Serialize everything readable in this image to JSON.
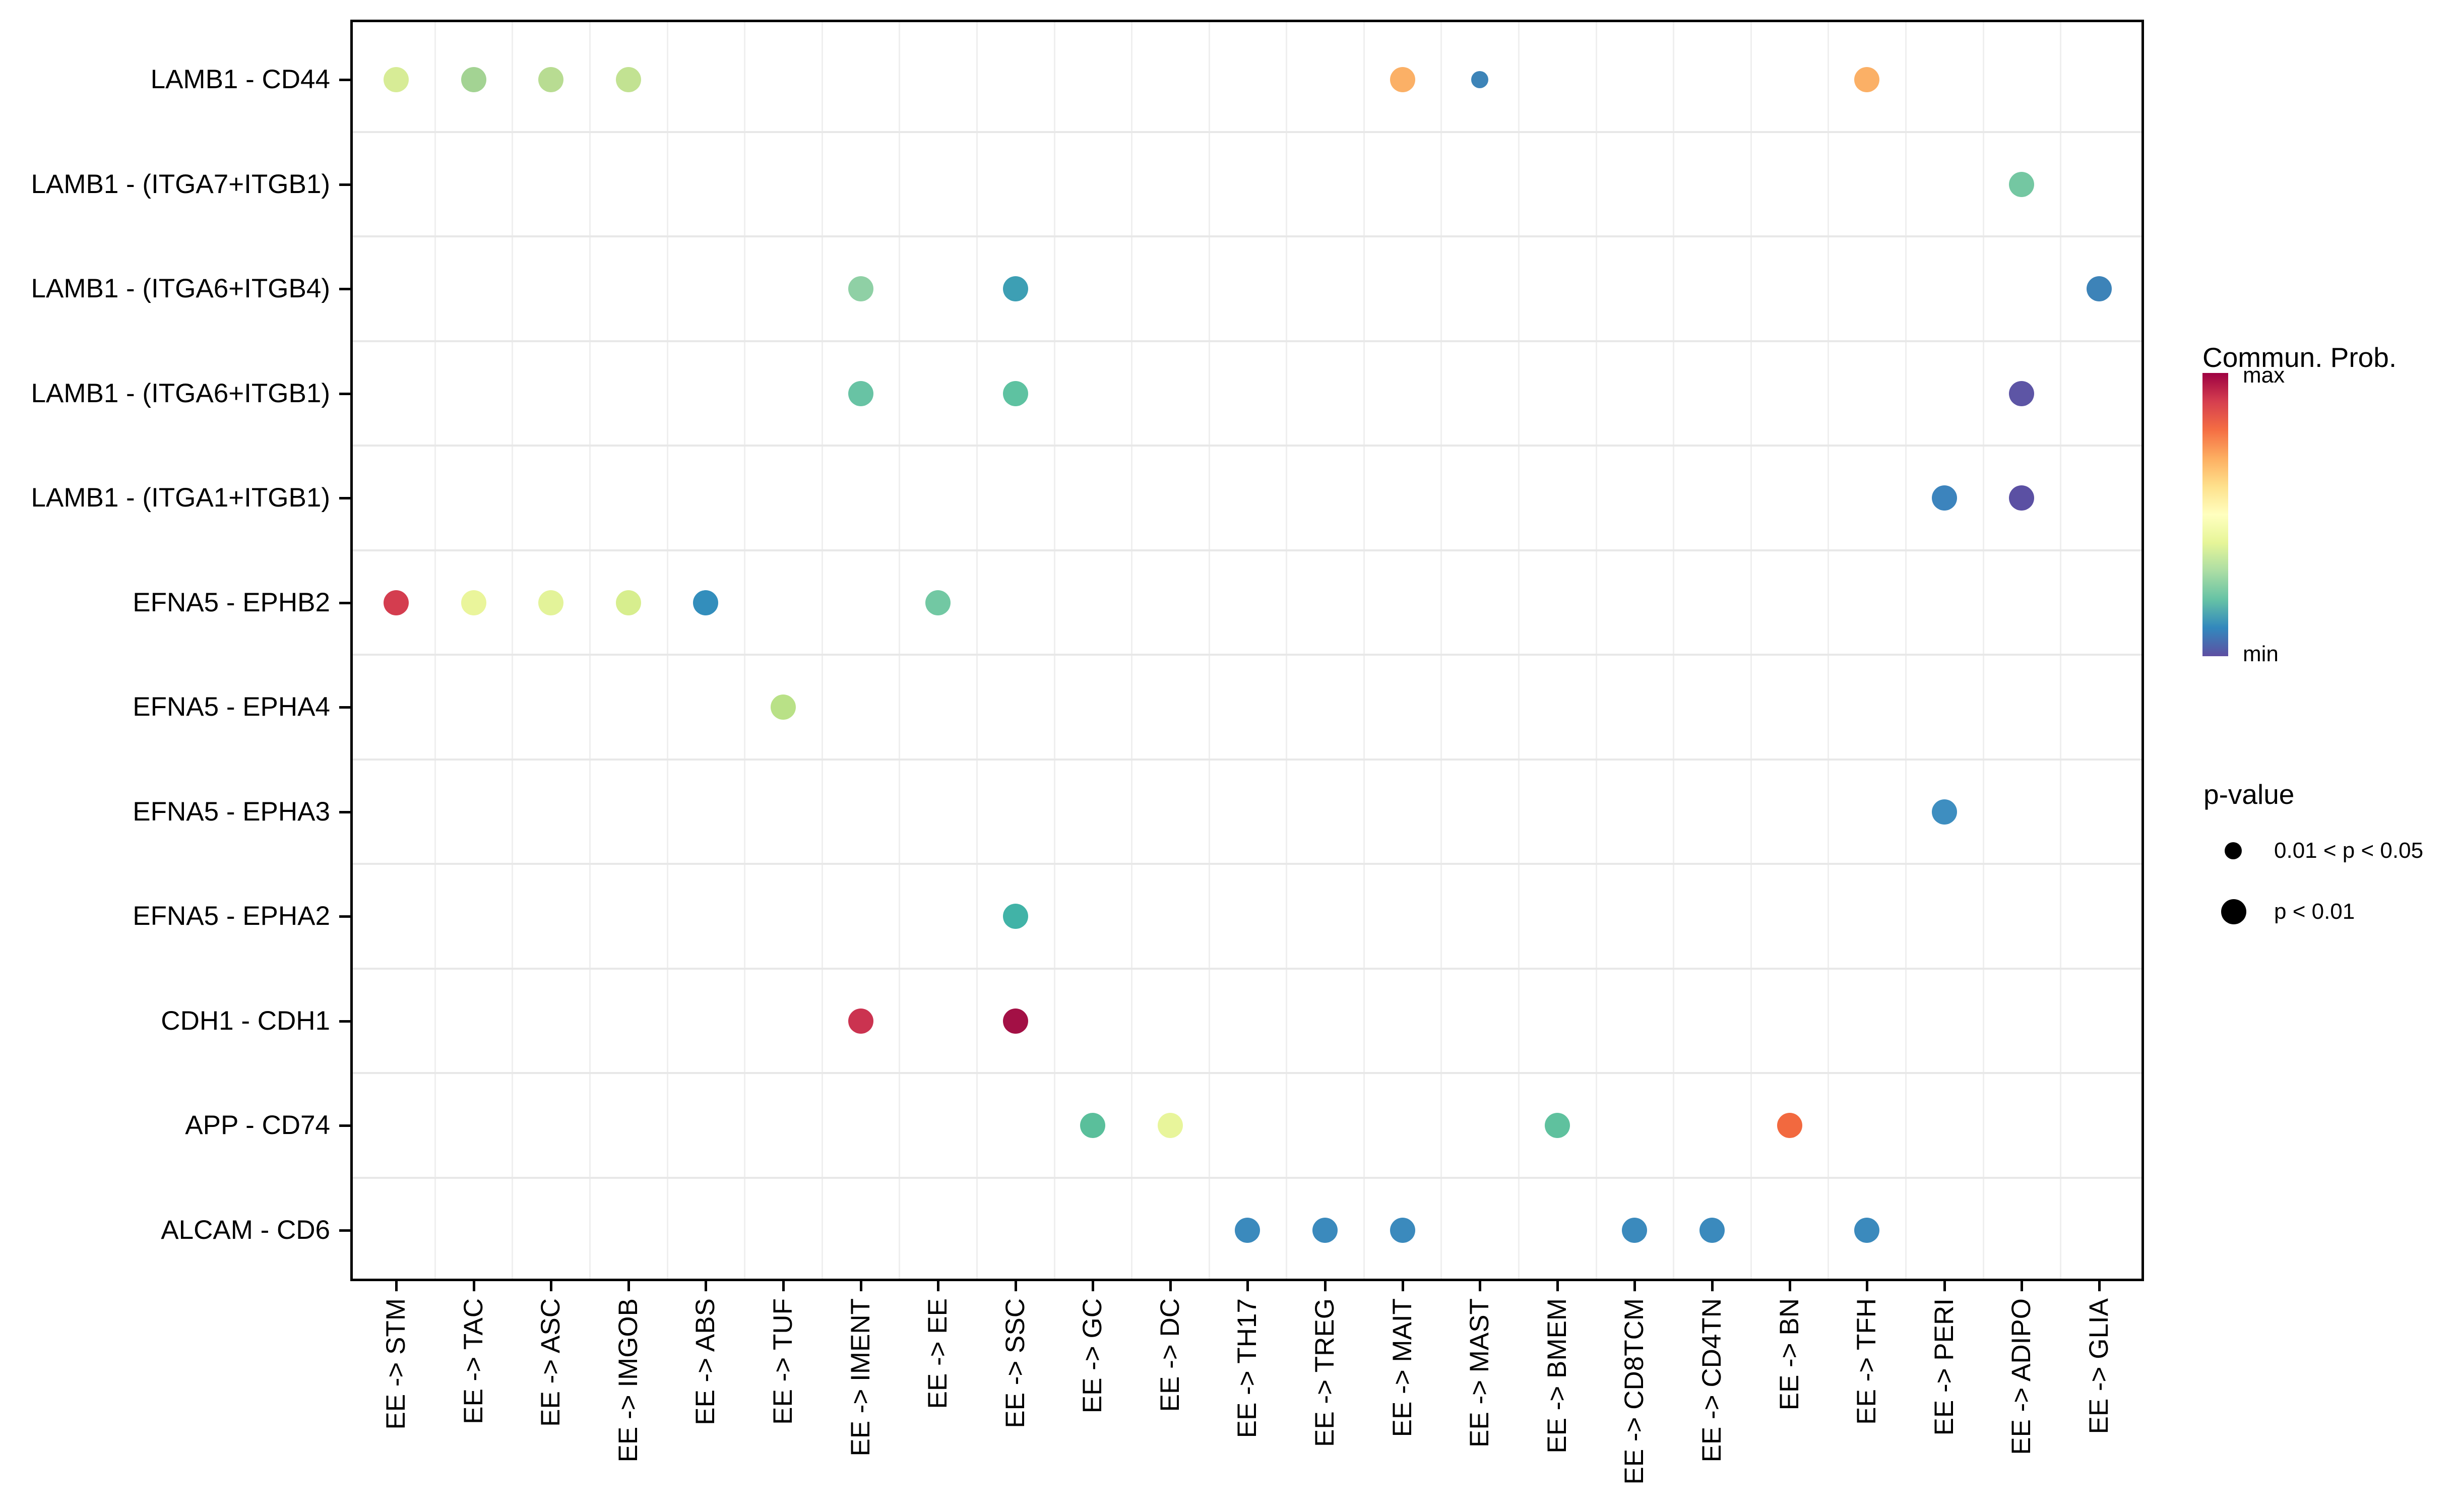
{
  "chart_data": {
    "type": "scatter",
    "subtype": "bubble-dot-plot",
    "title": "",
    "xlabel": "",
    "ylabel": "",
    "grid": "minor gridlines between category rows/columns",
    "legend_position": "right",
    "x_categories": [
      "EE -> STM",
      "EE -> TAC",
      "EE -> ASC",
      "EE -> IMGOB",
      "EE -> ABS",
      "EE -> TUF",
      "EE -> IMENT",
      "EE -> EE",
      "EE -> SSC",
      "EE -> GC",
      "EE -> DC",
      "EE -> TH17",
      "EE -> TREG",
      "EE -> MAIT",
      "EE -> MAST",
      "EE -> BMEM",
      "EE -> CD8TCM",
      "EE -> CD4TN",
      "EE -> BN",
      "EE -> TFH",
      "EE -> PERI",
      "EE -> ADIPO",
      "EE -> GLIA"
    ],
    "y_categories": [
      "LAMB1 - CD44",
      "LAMB1 - (ITGA7+ITGB1)",
      "LAMB1 - (ITGA6+ITGB4)",
      "LAMB1 - (ITGA6+ITGB1)",
      "LAMB1 - (ITGA1+ITGB1)",
      "EFNA5 - EPHB2",
      "EFNA5 - EPHA4",
      "EFNA5 - EPHA3",
      "EFNA5 - EPHA2",
      "CDH1 - CDH1",
      "APP - CD74",
      "ALCAM - CD6"
    ],
    "color_scale": {
      "meaning": "Commun. Prob.",
      "palette": "Spectral reversed",
      "max_color": "#9E0142",
      "min_color": "#5E4FA2"
    },
    "size_scale": {
      "large": "p < 0.01",
      "small": "0.01 < p < 0.05"
    },
    "points": [
      {
        "x": "EE -> STM",
        "y": "LAMB1 - CD44",
        "color": "#d7ec96",
        "size": "large"
      },
      {
        "x": "EE -> TAC",
        "y": "LAMB1 - CD44",
        "color": "#a3d393",
        "size": "large"
      },
      {
        "x": "EE -> ASC",
        "y": "LAMB1 - CD44",
        "color": "#b8dc92",
        "size": "large"
      },
      {
        "x": "EE -> IMGOB",
        "y": "LAMB1 - CD44",
        "color": "#c2e292",
        "size": "large"
      },
      {
        "x": "EE -> MAIT",
        "y": "LAMB1 - CD44",
        "color": "#fbb066",
        "size": "large"
      },
      {
        "x": "EE -> MAST",
        "y": "LAMB1 - CD44",
        "color": "#3d84b8",
        "size": "small"
      },
      {
        "x": "EE -> TFH",
        "y": "LAMB1 - CD44",
        "color": "#fbb066",
        "size": "large"
      },
      {
        "x": "EE -> ADIPO",
        "y": "LAMB1 - (ITGA7+ITGB1)",
        "color": "#74c7a2",
        "size": "large"
      },
      {
        "x": "EE -> IMENT",
        "y": "LAMB1 - (ITGA6+ITGB4)",
        "color": "#8fd0a5",
        "size": "large"
      },
      {
        "x": "EE -> SSC",
        "y": "LAMB1 - (ITGA6+ITGB4)",
        "color": "#3d9fb4",
        "size": "large"
      },
      {
        "x": "EE -> GLIA",
        "y": "LAMB1 - (ITGA6+ITGB4)",
        "color": "#3d83b8",
        "size": "large"
      },
      {
        "x": "EE -> IMENT",
        "y": "LAMB1 - (ITGA6+ITGB1)",
        "color": "#68c3a4",
        "size": "large"
      },
      {
        "x": "EE -> SSC",
        "y": "LAMB1 - (ITGA6+ITGB1)",
        "color": "#5ec2a1",
        "size": "large"
      },
      {
        "x": "EE -> ADIPO",
        "y": "LAMB1 - (ITGA6+ITGB1)",
        "color": "#5d55a5",
        "size": "large"
      },
      {
        "x": "EE -> PERI",
        "y": "LAMB1 - (ITGA1+ITGB1)",
        "color": "#3c84bd",
        "size": "large"
      },
      {
        "x": "EE -> ADIPO",
        "y": "LAMB1 - (ITGA1+ITGB1)",
        "color": "#5b50a3",
        "size": "large"
      },
      {
        "x": "EE -> STM",
        "y": "EFNA5 - EPHB2",
        "color": "#d43d4f",
        "size": "large"
      },
      {
        "x": "EE -> TAC",
        "y": "EFNA5 - EPHB2",
        "color": "#eaf59b",
        "size": "large"
      },
      {
        "x": "EE -> ASC",
        "y": "EFNA5 - EPHB2",
        "color": "#e3f399",
        "size": "large"
      },
      {
        "x": "EE -> IMGOB",
        "y": "EFNA5 - EPHB2",
        "color": "#d7ee8e",
        "size": "large"
      },
      {
        "x": "EE -> ABS",
        "y": "EFNA5 - EPHB2",
        "color": "#338ebc",
        "size": "large"
      },
      {
        "x": "EE -> EE",
        "y": "EFNA5 - EPHB2",
        "color": "#72c8a3",
        "size": "large"
      },
      {
        "x": "EE -> TUF",
        "y": "EFNA5 - EPHA4",
        "color": "#b9e187",
        "size": "large"
      },
      {
        "x": "EE -> PERI",
        "y": "EFNA5 - EPHA3",
        "color": "#3e8ec0",
        "size": "large"
      },
      {
        "x": "EE -> SSC",
        "y": "EFNA5 - EPHA2",
        "color": "#41b3a7",
        "size": "large"
      },
      {
        "x": "EE -> IMENT",
        "y": "CDH1 - CDH1",
        "color": "#cb3350",
        "size": "large"
      },
      {
        "x": "EE -> SSC",
        "y": "CDH1 - CDH1",
        "color": "#a31045",
        "size": "large"
      },
      {
        "x": "EE -> GC",
        "y": "APP - CD74",
        "color": "#5abf9b",
        "size": "large"
      },
      {
        "x": "EE -> DC",
        "y": "APP - CD74",
        "color": "#e8f59b",
        "size": "large"
      },
      {
        "x": "EE -> BMEM",
        "y": "APP - CD74",
        "color": "#5fc19e",
        "size": "large"
      },
      {
        "x": "EE -> BN",
        "y": "APP - CD74",
        "color": "#f2693f",
        "size": "large"
      },
      {
        "x": "EE -> TH17",
        "y": "ALCAM - CD6",
        "color": "#3b8abd",
        "size": "large"
      },
      {
        "x": "EE -> TREG",
        "y": "ALCAM - CD6",
        "color": "#3b8abd",
        "size": "large"
      },
      {
        "x": "EE -> MAIT",
        "y": "ALCAM - CD6",
        "color": "#3b8abd",
        "size": "large"
      },
      {
        "x": "EE -> CD8TCM",
        "y": "ALCAM - CD6",
        "color": "#3b8abd",
        "size": "large"
      },
      {
        "x": "EE -> CD4TN",
        "y": "ALCAM - CD6",
        "color": "#3b8abd",
        "size": "large"
      },
      {
        "x": "EE -> TFH",
        "y": "ALCAM - CD6",
        "color": "#3b8abd",
        "size": "large"
      }
    ]
  },
  "legend": {
    "colorbar": {
      "title": "Commun. Prob.",
      "max_label": "max",
      "min_label": "min",
      "stops": [
        "#9E0142",
        "#D53E4F",
        "#F46D43",
        "#FDAE61",
        "#FEE08B",
        "#FFFFBF",
        "#E6F598",
        "#ABDDA4",
        "#66C2A5",
        "#3288BD",
        "#5E4FA2"
      ]
    },
    "pvalue": {
      "title": "p-value",
      "items": [
        {
          "label": "0.01 < p < 0.05",
          "size": "small"
        },
        {
          "label": "p < 0.01",
          "size": "large"
        }
      ]
    }
  }
}
